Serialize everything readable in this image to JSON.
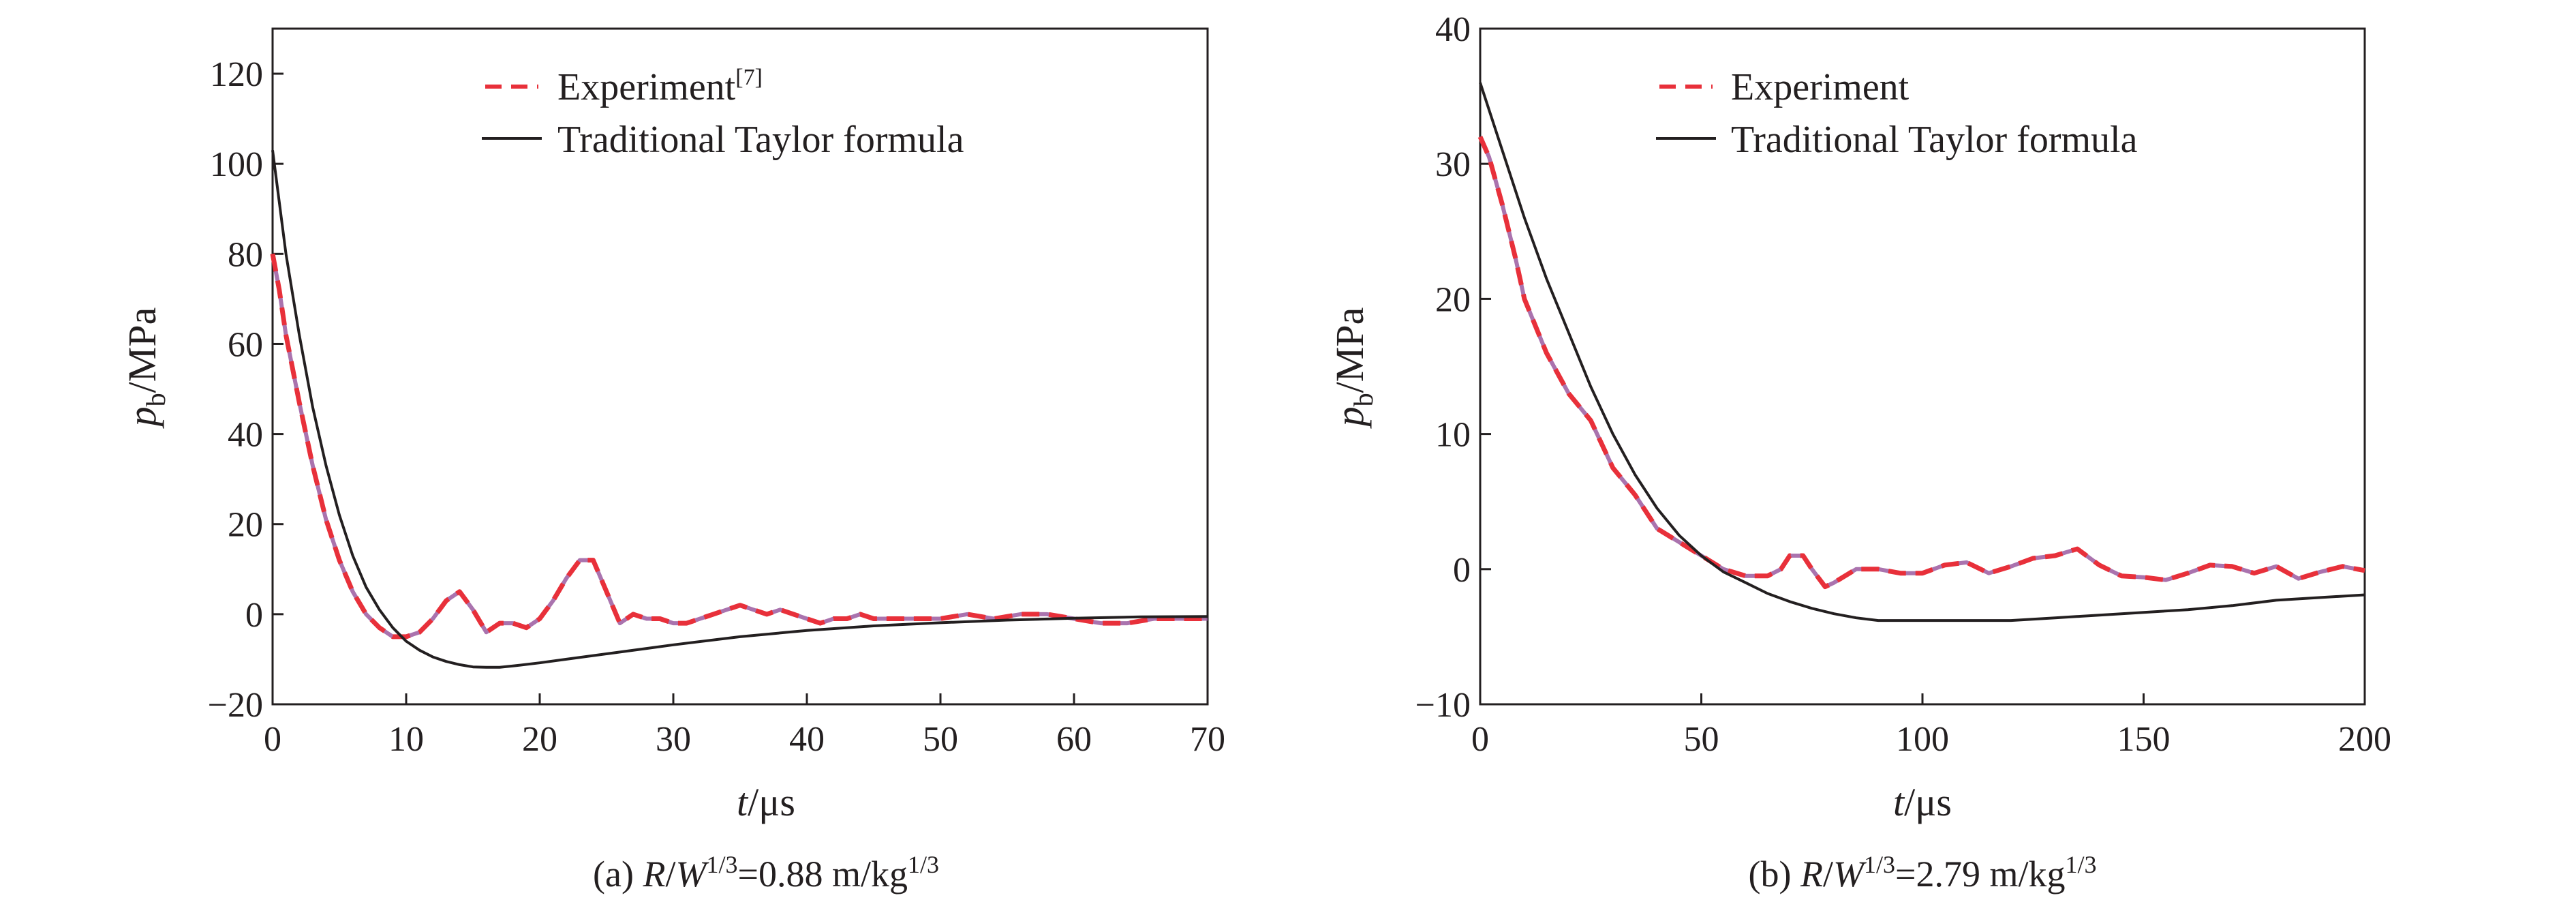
{
  "colors": {
    "experiment": "#e8303a",
    "experiment_shadow": "#9b5aa0",
    "taylor": "#231f20",
    "axis": "#231f20"
  },
  "chart_data": [
    {
      "type": "line",
      "panel_caption": {
        "prefix": "(a) ",
        "R": "R",
        "slash": "/",
        "W": "W",
        "W_exp": "1/3",
        "value": "=0.88 m/kg",
        "unit_exp": "1/3"
      },
      "xlabel": {
        "var": "t",
        "unit": "/μs"
      },
      "ylabel": {
        "var": "p",
        "sub": "b",
        "unit": "/MPa"
      },
      "xlim": [
        0,
        70
      ],
      "ylim": [
        -20,
        130
      ],
      "x_ticks": [
        0,
        10,
        20,
        30,
        40,
        50,
        60,
        70
      ],
      "x_tick_labels": [
        "0",
        "10",
        "20",
        "30",
        "40",
        "50",
        "60",
        "70"
      ],
      "y_ticks": [
        -20,
        0,
        20,
        40,
        60,
        80,
        100,
        120
      ],
      "y_tick_labels": [
        "−20",
        "0",
        "20",
        "40",
        "60",
        "80",
        "100",
        "120"
      ],
      "legend": {
        "position": "top-center",
        "experiment_label": "Experiment",
        "experiment_ref": "[7]",
        "taylor_label": "Traditional Taylor formula"
      },
      "series": [
        {
          "name": "Experiment[7]",
          "style": "dashed",
          "x": [
            0,
            0.5,
            1,
            2,
            3,
            4,
            5,
            6,
            7,
            8,
            9,
            10,
            11,
            12,
            13,
            14,
            15,
            16,
            17,
            18,
            19,
            20,
            21,
            22,
            23,
            24,
            25,
            26,
            27,
            28,
            29,
            30,
            31,
            32,
            33,
            34,
            35,
            36,
            37,
            38,
            39,
            40,
            41,
            42,
            43,
            44,
            45,
            46,
            47,
            48,
            49,
            50,
            52,
            54,
            56,
            58,
            60,
            62,
            64,
            66,
            68,
            70
          ],
          "values": [
            80,
            72,
            62,
            47,
            33,
            21,
            12,
            5,
            0,
            -3,
            -5,
            -5,
            -4,
            -1,
            3,
            5,
            1,
            -4,
            -2,
            -2,
            -3,
            -1,
            3,
            8,
            12,
            12,
            5,
            -2,
            0,
            -1,
            -1,
            -2,
            -2,
            -1,
            0,
            1,
            2,
            1,
            0,
            1,
            0,
            -1,
            -2,
            -1,
            -1,
            0,
            -1,
            -1,
            -1,
            -1,
            -1,
            -1,
            0,
            -1,
            0,
            0,
            -1,
            -2,
            -2,
            -1,
            -1,
            -1
          ]
        },
        {
          "name": "Traditional Taylor formula",
          "style": "solid",
          "x": [
            0,
            1,
            2,
            3,
            4,
            5,
            6,
            7,
            8,
            9,
            10,
            11,
            12,
            13,
            14,
            15,
            16,
            17,
            18,
            20,
            22,
            25,
            28,
            30,
            35,
            40,
            45,
            50,
            55,
            60,
            65,
            70
          ],
          "values": [
            103,
            80,
            62,
            46,
            33,
            22,
            13,
            6,
            1,
            -3,
            -6,
            -8,
            -9.5,
            -10.5,
            -11.2,
            -11.7,
            -11.8,
            -11.8,
            -11.5,
            -10.8,
            -10,
            -8.8,
            -7.6,
            -6.8,
            -5,
            -3.6,
            -2.6,
            -1.9,
            -1.3,
            -0.9,
            -0.6,
            -0.5
          ]
        }
      ]
    },
    {
      "type": "line",
      "panel_caption": {
        "prefix": "(b) ",
        "R": "R",
        "slash": "/",
        "W": "W",
        "W_exp": "1/3",
        "value": "=2.79 m/kg",
        "unit_exp": "1/3"
      },
      "xlabel": {
        "var": "t",
        "unit": "/μs"
      },
      "ylabel": {
        "var": "p",
        "sub": "b",
        "unit": "/MPa"
      },
      "xlim": [
        0,
        200
      ],
      "ylim": [
        -10,
        40
      ],
      "x_ticks": [
        0,
        50,
        100,
        150,
        200
      ],
      "x_tick_labels": [
        "0",
        "50",
        "100",
        "150",
        "200"
      ],
      "y_ticks": [
        -10,
        0,
        10,
        20,
        30,
        40
      ],
      "y_tick_labels": [
        "−10",
        "0",
        "10",
        "20",
        "30",
        "40"
      ],
      "legend": {
        "position": "top-center",
        "experiment_label": "Experiment",
        "experiment_ref": "",
        "taylor_label": "Traditional Taylor formula"
      },
      "series": [
        {
          "name": "Experiment",
          "style": "dashed",
          "x": [
            0,
            2,
            5,
            8,
            10,
            15,
            20,
            25,
            30,
            35,
            40,
            45,
            50,
            55,
            60,
            65,
            68,
            70,
            73,
            75,
            78,
            80,
            85,
            90,
            95,
            100,
            105,
            110,
            115,
            120,
            125,
            130,
            135,
            140,
            145,
            150,
            155,
            160,
            165,
            170,
            175,
            180,
            185,
            190,
            195,
            200
          ],
          "values": [
            32,
            30.5,
            27,
            23,
            20,
            16,
            13,
            11,
            7.5,
            5.5,
            3,
            2,
            1,
            0,
            -0.5,
            -0.5,
            0,
            1,
            1,
            0,
            -1.3,
            -1,
            0,
            0,
            -0.3,
            -0.3,
            0.3,
            0.5,
            -0.3,
            0.2,
            0.8,
            1,
            1.5,
            0.3,
            -0.5,
            -0.6,
            -0.8,
            -0.3,
            0.3,
            0.2,
            -0.3,
            0.2,
            -0.7,
            -0.2,
            0.2,
            -0.1
          ]
        },
        {
          "name": "Traditional Taylor formula",
          "style": "solid",
          "x": [
            0,
            5,
            10,
            15,
            20,
            25,
            30,
            35,
            40,
            45,
            50,
            55,
            60,
            65,
            70,
            75,
            80,
            85,
            90,
            95,
            100,
            110,
            120,
            130,
            140,
            150,
            160,
            170,
            180,
            190,
            200
          ],
          "values": [
            36,
            31,
            26,
            21.5,
            17.5,
            13.5,
            10,
            7,
            4.5,
            2.5,
            1,
            -0.2,
            -1,
            -1.8,
            -2.4,
            -2.9,
            -3.3,
            -3.6,
            -3.8,
            -3.8,
            -3.8,
            -3.8,
            -3.8,
            -3.6,
            -3.4,
            -3.2,
            -3,
            -2.7,
            -2.3,
            -2.1,
            -1.9
          ]
        }
      ]
    }
  ]
}
